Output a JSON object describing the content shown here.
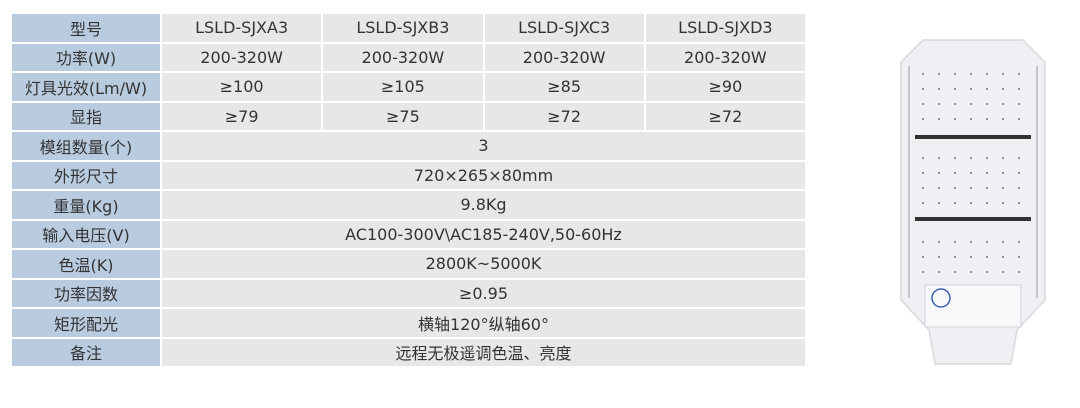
{
  "table": {
    "header": {
      "label": "型号",
      "models": [
        "LSLD-SJXA3",
        "LSLD-SJXB3",
        "LSLD-SJXC3",
        "LSLD-SJXD3"
      ]
    },
    "per_model_rows": [
      {
        "label": "功率(W)",
        "values": [
          "200-320W",
          "200-320W",
          "200-320W",
          "200-320W"
        ]
      },
      {
        "label": "灯具光效(Lm/W)",
        "values": [
          "≥100",
          "≥105",
          "≥85",
          "≥90"
        ]
      },
      {
        "label": "显指",
        "values": [
          "≥79",
          "≥75",
          "≥72",
          "≥72"
        ]
      }
    ],
    "shared_rows": [
      {
        "label": "模组数量(个)",
        "value": "3"
      },
      {
        "label": "外形尺寸",
        "value": "720×265×80mm"
      },
      {
        "label": "重量(Kg)",
        "value": "9.8Kg"
      },
      {
        "label": "输入电压(V)",
        "value": "AC100-300V\\AC185-240V,50-60Hz"
      },
      {
        "label": "色温(K)",
        "value": "2800K~5000K"
      },
      {
        "label": "功率因数",
        "value": "≥0.95"
      },
      {
        "label": "矩形配光",
        "value": "横轴120°纵轴60°"
      },
      {
        "label": "备注",
        "value": "远程无极遥调色温、亮度"
      }
    ]
  },
  "colors": {
    "label_bg": "#b9cbdf",
    "value_bg": "#e7e7e7",
    "lamp_body": "#eef0f3"
  },
  "image": {
    "subject": "led-street-lamp-module-photo"
  }
}
